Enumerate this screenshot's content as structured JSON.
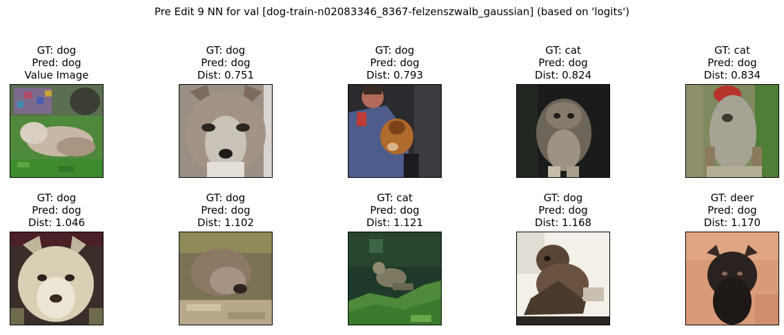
{
  "figure": {
    "suptitle": "Pre Edit 9 NN for val [dog-train-n02083346_8367-felzenszwalb_gaussian] (based on 'logits')"
  },
  "panels": [
    {
      "gt": "GT: dog",
      "pred": "Pred: dog",
      "extra": "Value Image",
      "scene": "dog-lying-on-grass-noisy"
    },
    {
      "gt": "GT: dog",
      "pred": "Pred: dog",
      "extra": "Dist: 0.751",
      "scene": "wolf-face-closeup"
    },
    {
      "gt": "GT: dog",
      "pred": "Pred: dog",
      "extra": "Dist: 0.793",
      "scene": "person-holding-brown-dog"
    },
    {
      "gt": "GT: cat",
      "pred": "Pred: dog",
      "extra": "Dist: 0.824",
      "scene": "fluffy-cat-dark-background"
    },
    {
      "gt": "GT: cat",
      "pred": "Pred: dog",
      "extra": "Dist: 0.834",
      "scene": "shaggy-animal-with-red-object"
    },
    {
      "gt": "GT: dog",
      "pred": "Pred: dog",
      "extra": "Dist: 1.046",
      "scene": "white-wolf-face"
    },
    {
      "gt": "GT: dog",
      "pred": "Pred: dog",
      "extra": "Dist: 1.102",
      "scene": "dog-lying-down"
    },
    {
      "gt": "GT: cat",
      "pred": "Pred: dog",
      "extra": "Dist: 1.121",
      "scene": "cat-on-green-hedge"
    },
    {
      "gt": "GT: dog",
      "pred": "Pred: dog",
      "extra": "Dist: 1.168",
      "scene": "dark-dog-white-background"
    },
    {
      "gt": "GT: deer",
      "pred": "Pred: dog",
      "extra": "Dist: 1.170",
      "scene": "bison-on-tan-background"
    }
  ],
  "chart_data": {
    "type": "image-grid",
    "title": "Pre Edit 9 NN for val [dog-train-n02083346_8367-felzenszwalb_gaussian] (based on 'logits')",
    "rows": 2,
    "cols": 5,
    "items": [
      {
        "gt": "dog",
        "pred": "dog",
        "dist": null,
        "label": "Value Image"
      },
      {
        "gt": "dog",
        "pred": "dog",
        "dist": 0.751
      },
      {
        "gt": "dog",
        "pred": "dog",
        "dist": 0.793
      },
      {
        "gt": "cat",
        "pred": "dog",
        "dist": 0.824
      },
      {
        "gt": "cat",
        "pred": "dog",
        "dist": 0.834
      },
      {
        "gt": "dog",
        "pred": "dog",
        "dist": 1.046
      },
      {
        "gt": "dog",
        "pred": "dog",
        "dist": 1.102
      },
      {
        "gt": "cat",
        "pred": "dog",
        "dist": 1.121
      },
      {
        "gt": "dog",
        "pred": "dog",
        "dist": 1.168
      },
      {
        "gt": "deer",
        "pred": "dog",
        "dist": 1.17
      }
    ]
  }
}
